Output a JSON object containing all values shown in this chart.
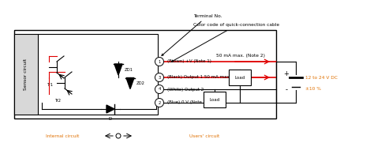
{
  "bg_color": "#ffffff",
  "sensor_box_color": "#d8d8d8",
  "line_color": "#000000",
  "red_color": "#e00000",
  "orange_color": "#e07000",
  "annotations": {
    "terminal_no": "Terminal No.",
    "color_code": "Color code of quick-connection cable",
    "brown_label": "(Brown) +V (Note 1)",
    "black_label": "(Black) Output 1 50 mA max. (Note 2)",
    "white_label": "(White) Output 2",
    "blue_label": "(Blue) 0 V (Note 1)",
    "fifty_ma": "50 mA max. (Note 2)",
    "voltage": "12 to 24 V DC",
    "tolerance": "±10 %",
    "internal": "Internal circuit",
    "users": "Users' circuit",
    "tr1": "Tr1",
    "tr2": "Tr2",
    "zd1": "ZD1",
    "zd2": "ZD2",
    "d_label": "D",
    "load1": "Load",
    "load2": "Load",
    "plus": "+",
    "minus": "-"
  }
}
